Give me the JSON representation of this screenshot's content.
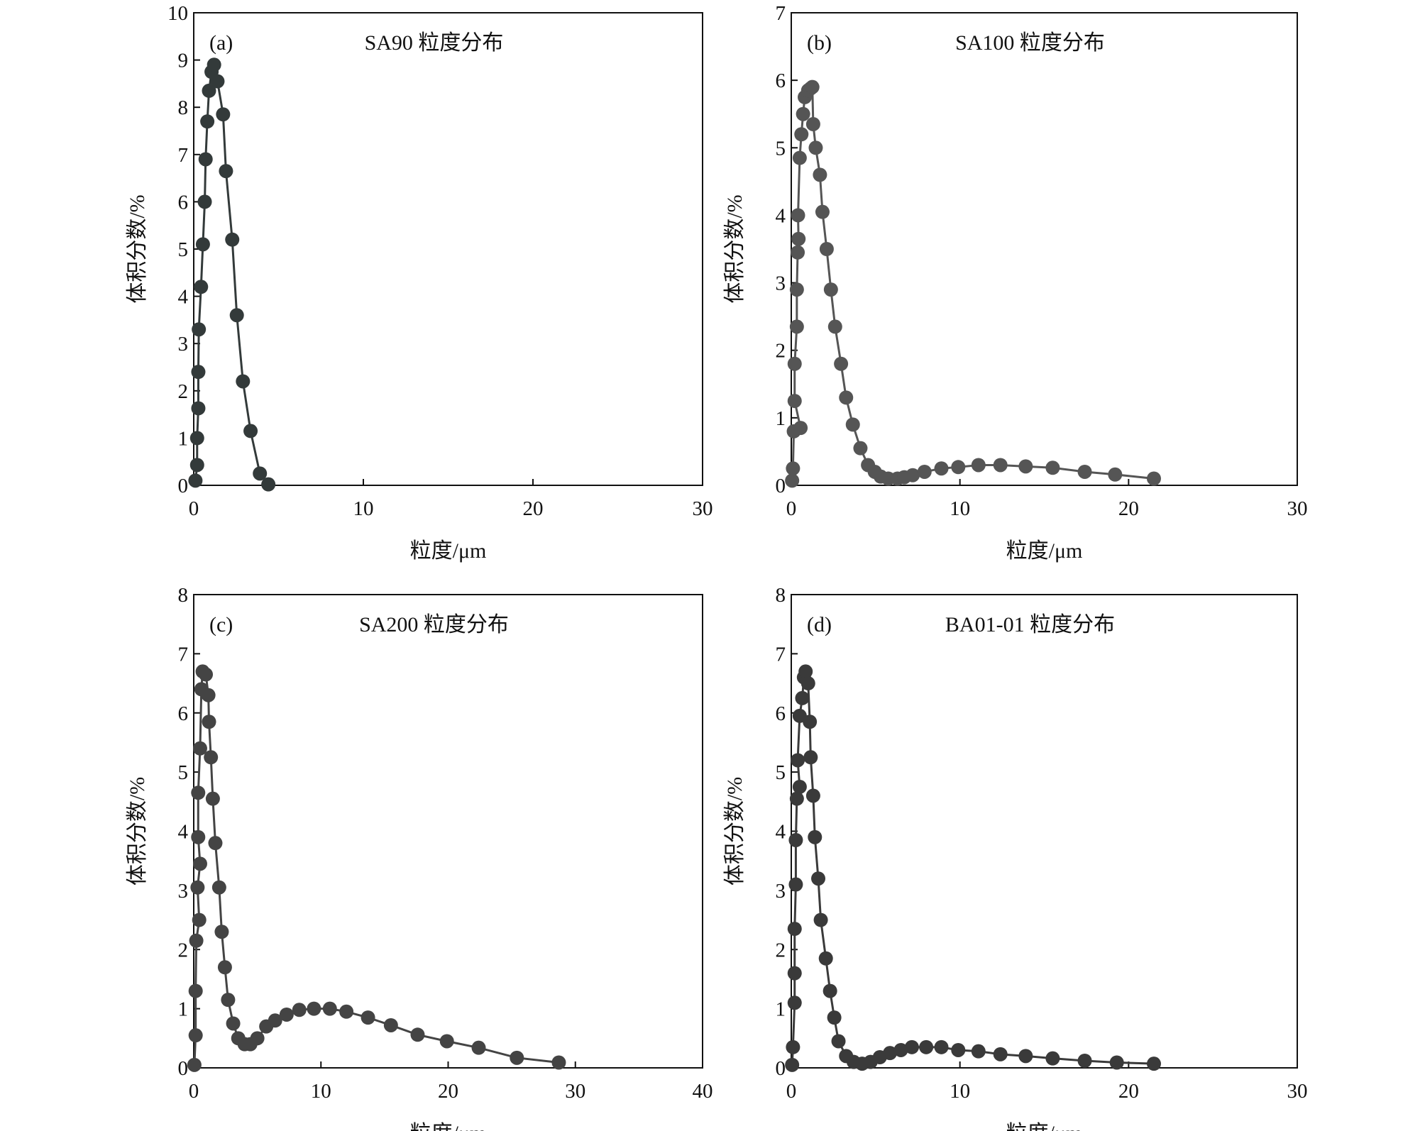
{
  "chart_data": [
    {
      "type": "line",
      "panel": "(a)",
      "title": "SA90 粒度分布",
      "xlabel": "粒度/μm",
      "ylabel": "体积分数/%",
      "xlim": [
        0,
        30
      ],
      "ylim": [
        0,
        10
      ],
      "xticks": [
        0,
        10,
        20,
        30
      ],
      "yticks": [
        0,
        1,
        2,
        3,
        4,
        5,
        6,
        7,
        8,
        9,
        10
      ],
      "color": "#333a3a",
      "markers": true,
      "x": [
        0.1,
        0.2,
        0.2,
        0.27,
        0.27,
        0.3,
        0.43,
        0.54,
        0.65,
        0.7,
        0.8,
        0.9,
        1.05,
        1.2,
        1.4,
        1.73,
        1.9,
        2.27,
        2.54,
        2.9,
        3.35,
        3.9,
        4.4
      ],
      "y": [
        0.1,
        0.43,
        1.0,
        1.63,
        2.4,
        3.3,
        4.2,
        5.1,
        6.0,
        6.9,
        7.7,
        8.35,
        8.75,
        8.9,
        8.55,
        7.85,
        6.65,
        5.2,
        3.6,
        2.2,
        1.15,
        0.25,
        0.02
      ]
    },
    {
      "type": "line",
      "panel": "(b)",
      "title": "SA100 粒度分布",
      "xlabel": "粒度/μm",
      "ylabel": "体积分数/%",
      "xlim": [
        0,
        30
      ],
      "ylim": [
        0,
        7
      ],
      "xticks": [
        0,
        10,
        20,
        30
      ],
      "yticks": [
        0,
        1,
        2,
        3,
        4,
        5,
        6,
        7
      ],
      "color": "#555555",
      "markers": true,
      "x": [
        0.05,
        0.1,
        0.15,
        0.55,
        0.2,
        0.2,
        0.33,
        0.33,
        0.38,
        0.43,
        0.4,
        0.5,
        0.6,
        0.7,
        0.8,
        1.0,
        1.15,
        1.25,
        1.3,
        1.45,
        1.7,
        1.85,
        2.1,
        2.35,
        2.6,
        2.95,
        3.25,
        3.65,
        4.1,
        4.55,
        4.95,
        5.3,
        5.75,
        6.3,
        6.7,
        7.2,
        7.9,
        8.9,
        9.9,
        11.1,
        12.4,
        13.9,
        15.5,
        17.4,
        19.2,
        21.5
      ],
      "y": [
        0.07,
        0.25,
        0.8,
        0.85,
        1.25,
        1.8,
        2.35,
        2.9,
        3.45,
        3.65,
        4.0,
        4.85,
        5.2,
        5.5,
        5.75,
        5.85,
        5.88,
        5.9,
        5.35,
        5.0,
        4.6,
        4.05,
        3.5,
        2.9,
        2.35,
        1.8,
        1.3,
        0.9,
        0.55,
        0.3,
        0.2,
        0.13,
        0.1,
        0.1,
        0.12,
        0.15,
        0.2,
        0.25,
        0.27,
        0.3,
        0.3,
        0.28,
        0.26,
        0.2,
        0.16,
        0.1
      ]
    },
    {
      "type": "line",
      "panel": "(c)",
      "title": "SA200 粒度分布",
      "xlabel": "粒度/μm",
      "ylabel": "体积分数/%",
      "xlim": [
        0,
        40
      ],
      "ylim": [
        0,
        8
      ],
      "xticks": [
        0,
        10,
        20,
        30,
        40
      ],
      "yticks": [
        0,
        1,
        2,
        3,
        4,
        5,
        6,
        7,
        8
      ],
      "color": "#444444",
      "markers": true,
      "x": [
        0.05,
        0.15,
        0.15,
        0.2,
        0.43,
        0.3,
        0.5,
        0.35,
        0.35,
        0.5,
        0.6,
        0.7,
        0.95,
        1.15,
        1.2,
        1.35,
        1.5,
        1.7,
        2.0,
        2.2,
        2.45,
        2.7,
        3.1,
        3.5,
        4.0,
        4.45,
        5.0,
        5.7,
        6.4,
        7.3,
        8.3,
        9.45,
        10.7,
        12.0,
        13.7,
        15.5,
        17.6,
        19.9,
        22.4,
        25.4,
        28.7
      ],
      "y": [
        0.05,
        0.55,
        1.3,
        2.15,
        2.5,
        3.05,
        3.45,
        3.9,
        4.65,
        5.4,
        6.4,
        6.7,
        6.65,
        6.3,
        5.85,
        5.25,
        4.55,
        3.8,
        3.05,
        2.3,
        1.7,
        1.15,
        0.75,
        0.5,
        0.4,
        0.4,
        0.5,
        0.7,
        0.8,
        0.9,
        0.98,
        1.0,
        1.0,
        0.95,
        0.85,
        0.72,
        0.56,
        0.45,
        0.34,
        0.17,
        0.09
      ]
    },
    {
      "type": "line",
      "panel": "(d)",
      "title": "BA01-01 粒度分布",
      "xlabel": "粒度/μm",
      "ylabel": "体积分数/%",
      "xlim": [
        0,
        30
      ],
      "ylim": [
        0,
        8
      ],
      "xticks": [
        0,
        10,
        20,
        30
      ],
      "yticks": [
        0,
        1,
        2,
        3,
        4,
        5,
        6,
        7,
        8
      ],
      "color": "#3a3a3a",
      "markers": true,
      "x": [
        0.05,
        0.1,
        0.2,
        0.2,
        0.2,
        0.27,
        0.27,
        0.33,
        0.5,
        0.38,
        0.5,
        0.65,
        0.75,
        0.85,
        1.0,
        1.1,
        1.15,
        1.3,
        1.4,
        1.6,
        1.75,
        2.05,
        2.3,
        2.55,
        2.8,
        3.25,
        3.7,
        4.2,
        4.7,
        5.25,
        5.85,
        6.5,
        7.15,
        8.0,
        8.9,
        9.9,
        11.1,
        12.4,
        13.9,
        15.5,
        17.4,
        19.3,
        21.5
      ],
      "y": [
        0.05,
        0.35,
        1.1,
        1.6,
        2.35,
        3.1,
        3.85,
        4.55,
        4.75,
        5.2,
        5.95,
        6.25,
        6.6,
        6.7,
        6.5,
        5.85,
        5.25,
        4.6,
        3.9,
        3.2,
        2.5,
        1.85,
        1.3,
        0.85,
        0.45,
        0.2,
        0.1,
        0.07,
        0.1,
        0.18,
        0.25,
        0.3,
        0.35,
        0.35,
        0.35,
        0.3,
        0.28,
        0.23,
        0.2,
        0.16,
        0.12,
        0.09,
        0.07
      ]
    }
  ]
}
